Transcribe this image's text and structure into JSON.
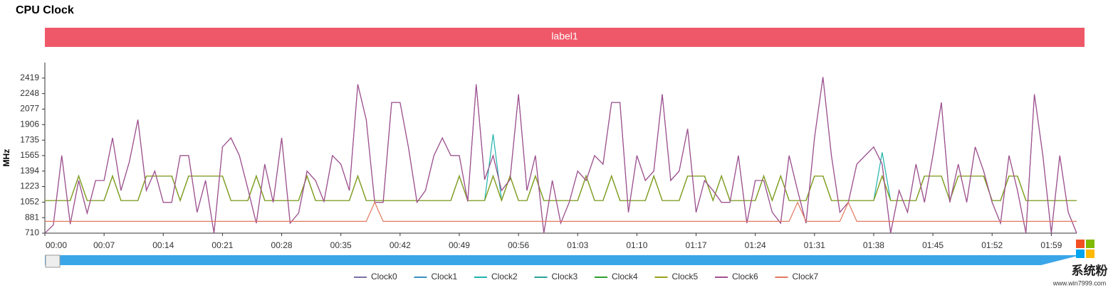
{
  "title": "CPU Clock",
  "banner": "label1",
  "watermark": {
    "name": "系统粉",
    "url": "www.win7999.com"
  },
  "chart_data": {
    "type": "line",
    "y_label": "MHz",
    "ylim": [
      710,
      2590
    ],
    "yticks": [
      710,
      881,
      1052,
      1223,
      1394,
      1565,
      1735,
      1906,
      2077,
      2248,
      2419
    ],
    "grid": false,
    "legend": "bottom",
    "categories": [
      "00:00",
      null,
      null,
      null,
      null,
      null,
      null,
      "00:07",
      null,
      null,
      null,
      null,
      null,
      null,
      "00:14",
      null,
      null,
      null,
      null,
      null,
      null,
      "00:21",
      null,
      null,
      null,
      null,
      null,
      null,
      "00:28",
      null,
      null,
      null,
      null,
      null,
      null,
      "00:35",
      null,
      null,
      null,
      null,
      null,
      null,
      "00:42",
      null,
      null,
      null,
      null,
      null,
      null,
      "00:49",
      null,
      null,
      null,
      null,
      null,
      null,
      "00:56",
      null,
      null,
      null,
      null,
      null,
      null,
      "01:03",
      null,
      null,
      null,
      null,
      null,
      null,
      "01:10",
      null,
      null,
      null,
      null,
      null,
      null,
      "01:17",
      null,
      null,
      null,
      null,
      null,
      null,
      "01:24",
      null,
      null,
      null,
      null,
      null,
      null,
      "01:31",
      null,
      null,
      null,
      null,
      null,
      null,
      "01:38",
      null,
      null,
      null,
      null,
      null,
      null,
      "01:45",
      null,
      null,
      null,
      null,
      null,
      null,
      "01:52",
      null,
      null,
      null,
      null,
      null,
      null,
      "01:59",
      null,
      null,
      null
    ],
    "series": [
      {
        "name": "Clock0",
        "color": "#7b6fa6",
        "values": [
          710,
          800,
          1565,
          810,
          1290,
          930,
          1290,
          1290,
          1760,
          1180,
          1500,
          1960,
          1180,
          1394,
          1050,
          1050,
          1565,
          1565,
          940,
          1290,
          710,
          1660,
          1760,
          1565,
          1200,
          820,
          1470,
          1050,
          1760,
          820,
          930,
          1394,
          1290,
          1060,
          1565,
          1470,
          1180,
          2350,
          1960,
          1050,
          1050,
          2150,
          2150,
          1650,
          1050,
          1180,
          1565,
          1760,
          1565,
          1565,
          1060,
          2350,
          1300,
          1565,
          1180,
          1300,
          2240,
          1180,
          1565,
          710,
          1290,
          820,
          1050,
          1394,
          1290,
          1565,
          1470,
          2150,
          2150,
          940,
          1565,
          1290,
          1394,
          2240,
          1290,
          1394,
          1860,
          940,
          1290,
          1180,
          1050,
          1050,
          1565,
          820,
          1290,
          1290,
          940,
          820,
          1565,
          1180,
          820,
          1760,
          2430,
          1565,
          940,
          1050,
          1470,
          1565,
          1660,
          1470,
          710,
          1180,
          940,
          1470,
          1050,
          1565,
          2150,
          1050,
          1470,
          1050,
          1660,
          1394,
          1050,
          820,
          1565,
          1180,
          710,
          2240,
          1565,
          710,
          1565,
          940,
          710
        ]
      },
      {
        "name": "Clock1",
        "color": "#3a8fc4",
        "values": [
          1070,
          1070,
          1070,
          1070,
          1340,
          1070,
          1070,
          1070,
          1340,
          1070,
          1070,
          1070,
          1340,
          1340,
          1340,
          1340,
          1070,
          1340,
          1340,
          1340,
          1340,
          1340,
          1070,
          1070,
          1070,
          1340,
          1070,
          1070,
          1070,
          1070,
          1070,
          1340,
          1070,
          1070,
          1070,
          1070,
          1070,
          1340,
          1070,
          1070,
          1070,
          1070,
          1070,
          1070,
          1070,
          1070,
          1070,
          1070,
          1070,
          1340,
          1070,
          1070,
          1070,
          1340,
          1070,
          1340,
          1070,
          1070,
          1340,
          1070,
          1070,
          1070,
          1070,
          1070,
          1340,
          1070,
          1070,
          1340,
          1070,
          1070,
          1070,
          1070,
          1340,
          1070,
          1070,
          1070,
          1340,
          1340,
          1340,
          1070,
          1340,
          1070,
          1070,
          1070,
          1070,
          1340,
          1070,
          1340,
          1070,
          1070,
          1070,
          1340,
          1340,
          1070,
          1070,
          1070,
          1070,
          1070,
          1070,
          1340,
          1070,
          1070,
          1070,
          1070,
          1340,
          1340,
          1340,
          1070,
          1340,
          1340,
          1340,
          1340,
          1070,
          1070,
          1340,
          1340,
          1070,
          1070,
          1070,
          1070,
          1070,
          1070,
          1070
        ]
      },
      {
        "name": "Clock2",
        "color": "#1fb3ad",
        "values": [
          1070,
          1070,
          1070,
          1070,
          1340,
          1070,
          1070,
          1070,
          1340,
          1070,
          1070,
          1070,
          1340,
          1340,
          1340,
          1340,
          1070,
          1340,
          1340,
          1340,
          1340,
          1340,
          1070,
          1070,
          1070,
          1340,
          1070,
          1070,
          1070,
          1070,
          1070,
          1340,
          1070,
          1070,
          1070,
          1070,
          1070,
          1340,
          1070,
          1070,
          1070,
          1070,
          1070,
          1070,
          1070,
          1070,
          1070,
          1070,
          1070,
          1340,
          1070,
          1070,
          1070,
          1800,
          1070,
          1340,
          1070,
          1070,
          1340,
          1070,
          1070,
          1070,
          1070,
          1070,
          1340,
          1070,
          1070,
          1340,
          1070,
          1070,
          1070,
          1070,
          1340,
          1070,
          1070,
          1070,
          1340,
          1340,
          1340,
          1070,
          1340,
          1070,
          1070,
          1070,
          1070,
          1340,
          1070,
          1340,
          1070,
          1070,
          1070,
          1340,
          1340,
          1070,
          1070,
          1070,
          1070,
          1070,
          1070,
          1600,
          1070,
          1070,
          1070,
          1070,
          1340,
          1340,
          1340,
          1070,
          1340,
          1340,
          1340,
          1340,
          1070,
          1070,
          1340,
          1340,
          1070,
          1070,
          1070,
          1070,
          1070,
          1070,
          1070
        ]
      },
      {
        "name": "Clock3",
        "color": "#2aa198",
        "values": [
          1070,
          1070,
          1070,
          1070,
          1340,
          1070,
          1070,
          1070,
          1340,
          1070,
          1070,
          1070,
          1340,
          1340,
          1340,
          1340,
          1070,
          1340,
          1340,
          1340,
          1340,
          1340,
          1070,
          1070,
          1070,
          1340,
          1070,
          1070,
          1070,
          1070,
          1070,
          1340,
          1070,
          1070,
          1070,
          1070,
          1070,
          1340,
          1070,
          1070,
          1070,
          1070,
          1070,
          1070,
          1070,
          1070,
          1070,
          1070,
          1070,
          1340,
          1070,
          1070,
          1070,
          1340,
          1070,
          1340,
          1070,
          1070,
          1340,
          1070,
          1070,
          1070,
          1070,
          1070,
          1340,
          1070,
          1070,
          1340,
          1070,
          1070,
          1070,
          1070,
          1340,
          1070,
          1070,
          1070,
          1340,
          1340,
          1340,
          1070,
          1340,
          1070,
          1070,
          1070,
          1070,
          1340,
          1070,
          1340,
          1070,
          1070,
          1070,
          1340,
          1340,
          1070,
          1070,
          1070,
          1070,
          1070,
          1070,
          1340,
          1070,
          1070,
          1070,
          1070,
          1340,
          1340,
          1340,
          1070,
          1340,
          1340,
          1340,
          1340,
          1070,
          1070,
          1340,
          1340,
          1070,
          1070,
          1070,
          1070,
          1070,
          1070,
          1070
        ]
      },
      {
        "name": "Clock4",
        "color": "#2ca02c",
        "values": [
          1070,
          1070,
          1070,
          1070,
          1340,
          1070,
          1070,
          1070,
          1340,
          1070,
          1070,
          1070,
          1340,
          1340,
          1340,
          1340,
          1070,
          1340,
          1340,
          1340,
          1340,
          1340,
          1070,
          1070,
          1070,
          1340,
          1070,
          1070,
          1070,
          1070,
          1070,
          1340,
          1070,
          1070,
          1070,
          1070,
          1070,
          1340,
          1070,
          1070,
          1070,
          1070,
          1070,
          1070,
          1070,
          1070,
          1070,
          1070,
          1070,
          1340,
          1070,
          1070,
          1070,
          1340,
          1070,
          1340,
          1070,
          1070,
          1340,
          1070,
          1070,
          1070,
          1070,
          1070,
          1340,
          1070,
          1070,
          1340,
          1070,
          1070,
          1070,
          1070,
          1340,
          1070,
          1070,
          1070,
          1340,
          1340,
          1340,
          1070,
          1340,
          1070,
          1070,
          1070,
          1070,
          1340,
          1070,
          1340,
          1070,
          1070,
          1070,
          1340,
          1340,
          1070,
          1070,
          1070,
          1070,
          1070,
          1070,
          1340,
          1070,
          1070,
          1070,
          1070,
          1340,
          1340,
          1340,
          1070,
          1340,
          1340,
          1340,
          1340,
          1070,
          1070,
          1340,
          1340,
          1070,
          1070,
          1070,
          1070,
          1070,
          1070,
          1070
        ]
      },
      {
        "name": "Clock5",
        "color": "#9aa01a",
        "values": [
          1070,
          1070,
          1070,
          1070,
          1340,
          1070,
          1070,
          1070,
          1340,
          1070,
          1070,
          1070,
          1340,
          1340,
          1340,
          1340,
          1070,
          1340,
          1340,
          1340,
          1340,
          1340,
          1070,
          1070,
          1070,
          1340,
          1070,
          1070,
          1070,
          1070,
          1070,
          1340,
          1070,
          1070,
          1070,
          1070,
          1070,
          1340,
          1070,
          1070,
          1070,
          1070,
          1070,
          1070,
          1070,
          1070,
          1070,
          1070,
          1070,
          1340,
          1070,
          1070,
          1070,
          1340,
          1070,
          1340,
          1070,
          1070,
          1340,
          1070,
          1070,
          1070,
          1070,
          1070,
          1340,
          1070,
          1070,
          1340,
          1070,
          1070,
          1070,
          1070,
          1340,
          1070,
          1070,
          1070,
          1340,
          1340,
          1340,
          1070,
          1340,
          1070,
          1070,
          1070,
          1070,
          1340,
          1070,
          1340,
          1070,
          1070,
          1070,
          1340,
          1340,
          1070,
          1070,
          1070,
          1070,
          1070,
          1070,
          1340,
          1070,
          1070,
          1070,
          1070,
          1340,
          1340,
          1340,
          1070,
          1340,
          1340,
          1340,
          1340,
          1070,
          1070,
          1340,
          1340,
          1070,
          1070,
          1070,
          1070,
          1070,
          1070,
          1070
        ]
      },
      {
        "name": "Clock6",
        "color": "#a2508e",
        "values": [
          710,
          800,
          1565,
          810,
          1290,
          930,
          1290,
          1290,
          1760,
          1180,
          1500,
          1960,
          1180,
          1394,
          1050,
          1050,
          1565,
          1565,
          940,
          1290,
          710,
          1660,
          1760,
          1565,
          1200,
          820,
          1470,
          1050,
          1760,
          820,
          930,
          1394,
          1290,
          1060,
          1565,
          1470,
          1180,
          2350,
          1960,
          1050,
          1050,
          2150,
          2150,
          1650,
          1050,
          1180,
          1565,
          1760,
          1565,
          1565,
          1060,
          2350,
          1300,
          1565,
          1180,
          1300,
          2240,
          1180,
          1565,
          710,
          1290,
          820,
          1050,
          1394,
          1290,
          1565,
          1470,
          2150,
          2150,
          940,
          1565,
          1290,
          1394,
          2240,
          1290,
          1394,
          1860,
          940,
          1290,
          1180,
          1050,
          1050,
          1565,
          820,
          1290,
          1290,
          940,
          820,
          1565,
          1180,
          820,
          1760,
          2430,
          1565,
          940,
          1050,
          1470,
          1565,
          1660,
          1470,
          710,
          1180,
          940,
          1470,
          1050,
          1565,
          2150,
          1050,
          1470,
          1050,
          1660,
          1394,
          1050,
          820,
          1565,
          1180,
          710,
          2240,
          1565,
          710,
          1565,
          940,
          710
        ]
      },
      {
        "name": "Clock7",
        "color": "#e07a5f",
        "values": [
          840,
          840,
          840,
          840,
          840,
          840,
          840,
          840,
          840,
          840,
          840,
          840,
          840,
          840,
          840,
          840,
          840,
          840,
          840,
          840,
          840,
          840,
          840,
          840,
          840,
          840,
          840,
          840,
          840,
          840,
          840,
          840,
          840,
          840,
          840,
          840,
          840,
          840,
          840,
          1050,
          840,
          840,
          840,
          840,
          840,
          840,
          840,
          840,
          840,
          840,
          840,
          840,
          840,
          840,
          840,
          840,
          840,
          840,
          840,
          840,
          840,
          840,
          840,
          840,
          840,
          840,
          840,
          840,
          840,
          840,
          840,
          840,
          840,
          840,
          840,
          840,
          840,
          840,
          840,
          840,
          840,
          840,
          840,
          840,
          840,
          840,
          840,
          840,
          840,
          1050,
          840,
          840,
          840,
          840,
          840,
          1050,
          840,
          840,
          840,
          840,
          840,
          840,
          840,
          840,
          840,
          840,
          840,
          840,
          840,
          840,
          840,
          840,
          840,
          840,
          840,
          840,
          840,
          840,
          840,
          840,
          840,
          840,
          840
        ]
      }
    ]
  }
}
